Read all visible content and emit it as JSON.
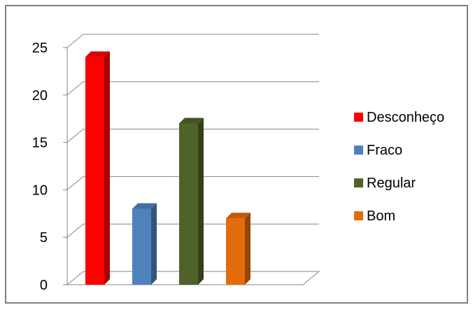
{
  "chart_data": {
    "type": "bar",
    "categories": [
      "Desconheço",
      "Fraco",
      "Regular",
      "Bom"
    ],
    "values": [
      24,
      8,
      17,
      7
    ],
    "colors": [
      "#ff0000",
      "#4f81bd",
      "#4f6228",
      "#e36c09"
    ],
    "y_ticks": [
      "0",
      "5",
      "10",
      "15",
      "20",
      "25"
    ],
    "ylim": [
      0,
      25
    ],
    "grid": true,
    "legend_position": "right",
    "style": "3d"
  }
}
